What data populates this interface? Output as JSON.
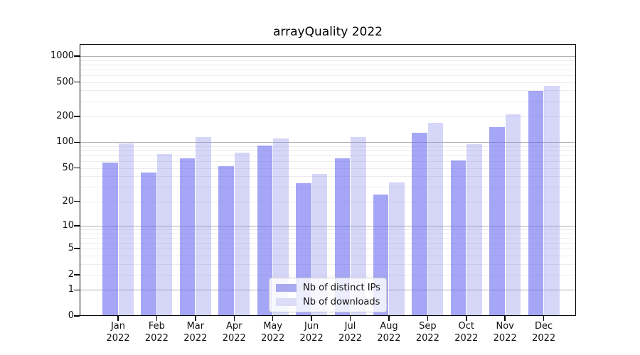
{
  "figure": {
    "title": "arrayQuality 2022"
  },
  "chart_data": {
    "type": "bar",
    "title": "arrayQuality 2022",
    "categories": [
      "Jan 2022",
      "Feb 2022",
      "Mar 2022",
      "Apr 2022",
      "May 2022",
      "Jun 2022",
      "Jul 2022",
      "Aug 2022",
      "Sep 2022",
      "Oct 2022",
      "Nov 2022",
      "Dec 2022"
    ],
    "x_axis": {
      "months": [
        "Jan",
        "Feb",
        "Mar",
        "Apr",
        "May",
        "Jun",
        "Jul",
        "Aug",
        "Sep",
        "Oct",
        "Nov",
        "Dec"
      ],
      "year": "2022"
    },
    "series": [
      {
        "name": "Nb of distinct IPs",
        "values": [
          58,
          44,
          65,
          53,
          91,
          33,
          65,
          24,
          129,
          61,
          150,
          395
        ]
      },
      {
        "name": "Nb of downloads",
        "values": [
          97,
          73,
          115,
          76,
          110,
          43,
          115,
          34,
          170,
          96,
          211,
          450
        ]
      }
    ],
    "y_axis": {
      "scale": "log10(1+value)",
      "tick_labels": [
        "0",
        "1",
        "2",
        "5",
        "10",
        "20",
        "50",
        "100",
        "200",
        "500",
        "1000"
      ],
      "tick_values": [
        0,
        1,
        2,
        5,
        10,
        20,
        50,
        100,
        200,
        500,
        1000
      ],
      "major_gridlines": [
        1,
        10,
        100,
        1000
      ],
      "minor_gridlines": [
        2,
        3,
        4,
        5,
        6,
        7,
        8,
        9,
        20,
        30,
        40,
        50,
        60,
        70,
        80,
        90,
        200,
        300,
        400,
        500,
        600,
        700,
        800,
        900
      ],
      "ylim": [
        0,
        1376
      ]
    },
    "legend": {
      "position": "inside-bottom-center",
      "items": [
        {
          "label": "Nb of distinct IPs",
          "color": "#a9a9f0"
        },
        {
          "label": "Nb of downloads",
          "color": "#dcdcf8"
        }
      ]
    },
    "grid": "horizontal log major+minor"
  },
  "colors": {
    "bar_distinct_ips": "rgba(102,102,240,0.58)",
    "bar_downloads": "rgba(138,138,238,0.35)",
    "grid_major": "#b0b0b0",
    "grid_minor": "#ececec",
    "axis": "#000000"
  }
}
